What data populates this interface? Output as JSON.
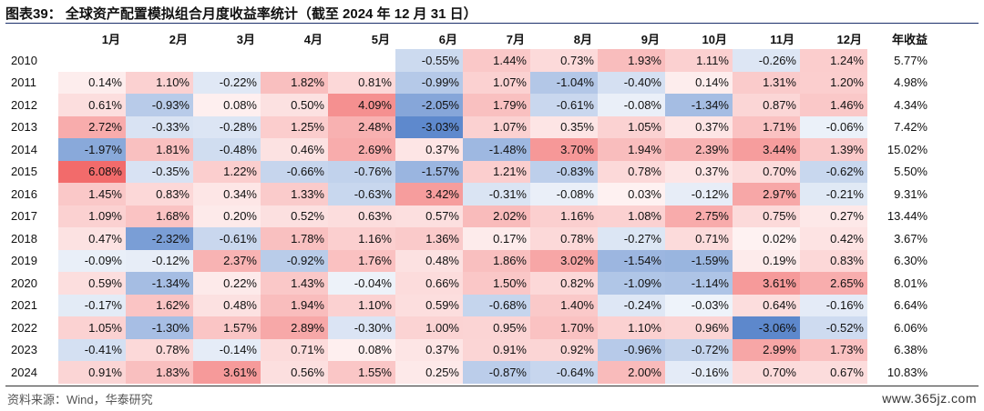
{
  "title": "图表39：  全球资产配置模拟组合月度收益率统计（截至 2024 年 12 月 31 日）",
  "source": "资料来源：Wind，华泰研究",
  "watermark": "www.365jz.com",
  "colors": {
    "positive": "#f26b6b",
    "negative": "#5b87cc",
    "neutral": "#ffffff"
  },
  "chart_data": {
    "type": "table",
    "title": "全球资产配置模拟组合月度收益率统计（截至 2024 年 12 月 31 日）",
    "columns": [
      "",
      "1月",
      "2月",
      "3月",
      "4月",
      "5月",
      "6月",
      "7月",
      "8月",
      "9月",
      "10月",
      "11月",
      "12月",
      "年收益"
    ],
    "rows": [
      [
        "2010",
        "",
        "",
        "",
        "",
        "",
        "-0.55%",
        "1.44%",
        "0.73%",
        "1.93%",
        "1.11%",
        "-0.26%",
        "1.24%",
        "5.77%"
      ],
      [
        "2011",
        "0.14%",
        "1.10%",
        "-0.22%",
        "1.82%",
        "0.81%",
        "-0.99%",
        "1.07%",
        "-1.04%",
        "-0.40%",
        "0.14%",
        "1.31%",
        "1.20%",
        "4.98%"
      ],
      [
        "2012",
        "0.61%",
        "-0.93%",
        "0.08%",
        "0.50%",
        "4.09%",
        "-2.05%",
        "1.79%",
        "-0.61%",
        "-0.08%",
        "-1.34%",
        "0.87%",
        "1.46%",
        "4.34%"
      ],
      [
        "2013",
        "2.72%",
        "-0.33%",
        "-0.28%",
        "1.25%",
        "2.48%",
        "-3.03%",
        "1.07%",
        "0.35%",
        "1.05%",
        "0.37%",
        "1.71%",
        "-0.06%",
        "7.42%"
      ],
      [
        "2014",
        "-1.97%",
        "1.81%",
        "-0.48%",
        "0.46%",
        "2.69%",
        "0.37%",
        "-1.48%",
        "3.70%",
        "1.94%",
        "2.39%",
        "3.44%",
        "1.39%",
        "15.02%"
      ],
      [
        "2015",
        "6.08%",
        "-0.35%",
        "1.22%",
        "-0.66%",
        "-0.76%",
        "-1.57%",
        "1.21%",
        "-0.83%",
        "0.78%",
        "0.37%",
        "0.70%",
        "-0.62%",
        "5.50%"
      ],
      [
        "2016",
        "1.45%",
        "0.83%",
        "0.34%",
        "1.33%",
        "-0.63%",
        "3.42%",
        "-0.31%",
        "-0.08%",
        "0.03%",
        "-0.12%",
        "2.97%",
        "-0.21%",
        "9.31%"
      ],
      [
        "2017",
        "1.09%",
        "1.68%",
        "0.20%",
        "0.52%",
        "0.63%",
        "0.57%",
        "2.02%",
        "1.16%",
        "1.08%",
        "2.75%",
        "0.75%",
        "0.27%",
        "13.44%"
      ],
      [
        "2018",
        "0.47%",
        "-2.32%",
        "-0.61%",
        "1.78%",
        "1.16%",
        "1.36%",
        "0.17%",
        "0.78%",
        "-0.27%",
        "0.71%",
        "0.02%",
        "0.42%",
        "3.67%"
      ],
      [
        "2019",
        "-0.09%",
        "-0.12%",
        "2.37%",
        "-0.92%",
        "1.76%",
        "0.48%",
        "1.86%",
        "3.02%",
        "-1.54%",
        "-1.59%",
        "0.19%",
        "0.83%",
        "6.30%"
      ],
      [
        "2020",
        "0.59%",
        "-1.34%",
        "0.22%",
        "1.43%",
        "-0.04%",
        "0.66%",
        "1.50%",
        "0.82%",
        "-1.09%",
        "-1.14%",
        "3.61%",
        "2.65%",
        "8.01%"
      ],
      [
        "2021",
        "-0.17%",
        "1.62%",
        "0.48%",
        "1.94%",
        "1.10%",
        "0.59%",
        "-0.68%",
        "1.40%",
        "-0.24%",
        "-0.03%",
        "0.64%",
        "-0.16%",
        "6.64%"
      ],
      [
        "2022",
        "1.05%",
        "-1.30%",
        "1.57%",
        "2.89%",
        "-0.30%",
        "1.00%",
        "0.95%",
        "1.70%",
        "1.10%",
        "0.96%",
        "-3.06%",
        "-0.52%",
        "6.06%"
      ],
      [
        "2023",
        "-0.41%",
        "0.78%",
        "-0.14%",
        "0.71%",
        "0.08%",
        "0.37%",
        "0.91%",
        "0.92%",
        "-0.96%",
        "-0.72%",
        "2.99%",
        "1.73%",
        "6.38%"
      ],
      [
        "2024",
        "0.91%",
        "1.83%",
        "3.61%",
        "0.56%",
        "1.55%",
        "0.25%",
        "-0.87%",
        "-0.64%",
        "2.00%",
        "-0.16%",
        "0.70%",
        "0.67%",
        "10.83%"
      ]
    ]
  }
}
